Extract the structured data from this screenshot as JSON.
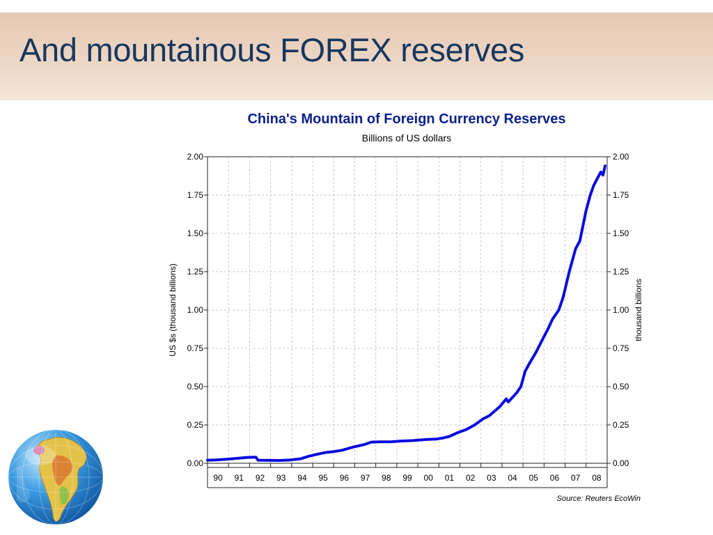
{
  "slide": {
    "title": "And mountainous FOREX reserves"
  },
  "chart_data": {
    "type": "line",
    "title": "China's Mountain of Foreign Currency Reserves",
    "subtitle": "Billions of US dollars",
    "ylabel": "US $s (thousand billions)",
    "ylabel_right": "thousand billions",
    "ylim": [
      0,
      2
    ],
    "yticks": [
      "0.00",
      "0.25",
      "0.50",
      "0.75",
      "1.00",
      "1.25",
      "1.50",
      "1.75",
      "2.00"
    ],
    "xlim": [
      1989.6,
      2008.6
    ],
    "xtick_labels": [
      "90",
      "91",
      "92",
      "93",
      "94",
      "95",
      "96",
      "97",
      "98",
      "99",
      "00",
      "01",
      "02",
      "03",
      "04",
      "05",
      "06",
      "07",
      "08"
    ],
    "grid": true,
    "line_color": "#0a0ae0",
    "source": "Source: Reuters EcoWin",
    "series": [
      {
        "x": [
          1989.6,
          1990.0,
          1990.5,
          1991.0,
          1991.5,
          1991.9,
          1992.0,
          1992.5,
          1993.0,
          1993.5,
          1994.0,
          1994.4,
          1994.8,
          1995.2,
          1995.6,
          1996.0,
          1996.5,
          1997.0,
          1997.4,
          1997.8,
          1998.3,
          1998.8,
          1999.4,
          2000.0,
          2000.5,
          2000.8,
          2001.1,
          2001.5,
          2001.9,
          2002.3,
          2002.7,
          2003.0,
          2003.5,
          2003.8,
          2003.9,
          2004.3,
          2004.5,
          2004.7,
          2004.9,
          2005.2,
          2005.5,
          2005.8,
          2006.0,
          2006.3,
          2006.5,
          2006.8,
          2007.1,
          2007.3,
          2007.6,
          2007.8,
          2007.95,
          2008.1,
          2008.3,
          2008.4,
          2008.5
        ],
        "values": [
          0.02,
          0.022,
          0.026,
          0.032,
          0.038,
          0.04,
          0.02,
          0.019,
          0.018,
          0.021,
          0.028,
          0.045,
          0.058,
          0.07,
          0.076,
          0.085,
          0.105,
          0.12,
          0.138,
          0.14,
          0.14,
          0.145,
          0.148,
          0.155,
          0.158,
          0.165,
          0.175,
          0.2,
          0.22,
          0.25,
          0.29,
          0.31,
          0.37,
          0.42,
          0.4,
          0.46,
          0.5,
          0.6,
          0.65,
          0.72,
          0.8,
          0.88,
          0.94,
          1.0,
          1.08,
          1.25,
          1.4,
          1.45,
          1.65,
          1.75,
          1.81,
          1.85,
          1.9,
          1.88,
          1.94
        ]
      }
    ]
  }
}
